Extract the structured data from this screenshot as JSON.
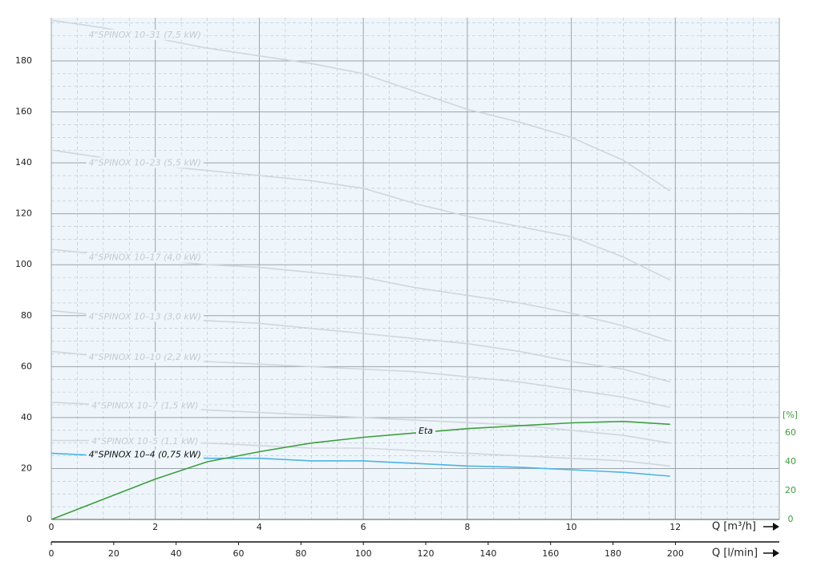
{
  "chart_data": {
    "type": "line",
    "x_label": "Q [m³/h]",
    "x2_label": "Q [l/min]",
    "y2_label": "[%]",
    "xlim": [
      0,
      14
    ],
    "xticks": [
      0,
      2,
      4,
      6,
      8,
      10,
      12
    ],
    "xminorticks": [
      0.5,
      1,
      1.5,
      2.5,
      3,
      3.5,
      4.5,
      5,
      5.5,
      6.5,
      7,
      7.5,
      8.5,
      9,
      9.5,
      10.5,
      11,
      11.5,
      12.5,
      13,
      13.5
    ],
    "x2lim": [
      0,
      233.3
    ],
    "x2ticks": [
      0,
      20,
      40,
      60,
      80,
      100,
      120,
      140,
      160,
      180,
      200
    ],
    "ylim": [
      0,
      197
    ],
    "yticks": [
      0,
      20,
      40,
      60,
      80,
      100,
      120,
      140,
      160,
      180
    ],
    "yminorticks": [
      5,
      10,
      15,
      25,
      30,
      35,
      45,
      50,
      55,
      65,
      70,
      75,
      85,
      90,
      95,
      105,
      110,
      115,
      125,
      130,
      135,
      145,
      150,
      155,
      165,
      170,
      175,
      185,
      190,
      195
    ],
    "y2lim": [
      0,
      348
    ],
    "y2ticks": [
      0,
      20,
      40,
      60
    ],
    "grid": true,
    "x": [
      0,
      1,
      2,
      3,
      4,
      5,
      6,
      7,
      8,
      9,
      10,
      11,
      11.9
    ],
    "series": [
      {
        "name": "4\"SPINOX 10–31 (7,5 kW)",
        "color": "#d2d6da",
        "label_color": "#c6cacd",
        "values": [
          196,
          193,
          189,
          185,
          182,
          179,
          175,
          168,
          161,
          156,
          150,
          141,
          129
        ]
      },
      {
        "name": "4\"SPINOX 10–23 (5,5 kW)",
        "color": "#d2d6da",
        "label_color": "#c6cacd",
        "values": [
          145,
          142,
          139,
          137,
          135,
          133,
          130,
          124,
          119,
          115,
          111,
          103,
          94
        ]
      },
      {
        "name": "4\"SPINOX 10–17 (4,0 kW)",
        "color": "#d2d6da",
        "label_color": "#c6cacd",
        "values": [
          106,
          104,
          102,
          100,
          99,
          97,
          95,
          91,
          88,
          85,
          81,
          76,
          70
        ]
      },
      {
        "name": "4\"SPINOX 10–13 (3,0 kW)",
        "color": "#d2d6da",
        "label_color": "#c6cacd",
        "values": [
          82,
          80,
          79,
          78,
          77,
          75,
          73,
          71,
          69,
          66,
          62,
          59,
          54
        ]
      },
      {
        "name": "4\"SPINOX 10–10 (2,2 kW)",
        "color": "#d2d6da",
        "label_color": "#c6cacd",
        "values": [
          66,
          64,
          63,
          62,
          61,
          60,
          59,
          58,
          56,
          54,
          51,
          48,
          44
        ]
      },
      {
        "name": "4\"SPINOX 10–7 (1,5 kW)",
        "color": "#d2d6da",
        "label_color": "#c6cacd",
        "values": [
          46,
          45,
          44,
          43,
          42,
          41,
          40,
          39,
          38,
          37,
          35,
          33,
          30
        ]
      },
      {
        "name": "4\"SPINOX 10–5 (1,1 kW)",
        "color": "#d2d6da",
        "label_color": "#c6cacd",
        "values": [
          31,
          31,
          30,
          30,
          29,
          28,
          28,
          27,
          26,
          25,
          24,
          23,
          21
        ]
      },
      {
        "name": "4\"SPINOX 10–4 (0,75 kW)",
        "color": "#4db3e6",
        "label_color": "#111111",
        "values": [
          26,
          25,
          25,
          24,
          24,
          23,
          23,
          22,
          21,
          20.5,
          19.5,
          18.5,
          17
        ]
      },
      {
        "name": "Eta",
        "color": "#3f9d3f",
        "label_color": "#111111",
        "axis": "y2",
        "values": [
          0,
          14,
          28,
          40,
          47,
          53,
          57,
          60,
          63,
          65,
          67,
          68,
          66
        ]
      }
    ]
  }
}
